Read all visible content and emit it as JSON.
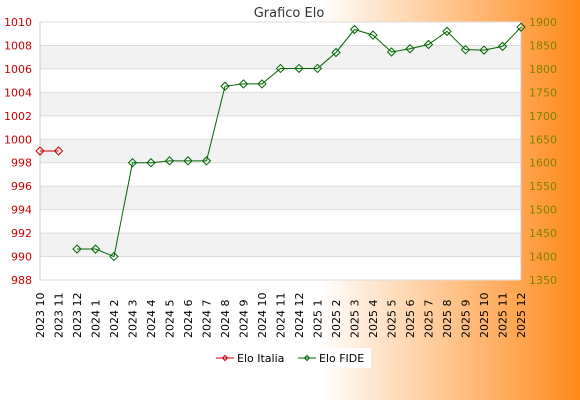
{
  "chart_data": {
    "type": "line",
    "title": "Grafico Elo",
    "categories": [
      "2023 10",
      "2023 11",
      "2023 12",
      "2024 1",
      "2024 2",
      "2024 3",
      "2024 4",
      "2024 5",
      "2024 6",
      "2024 7",
      "2024 8",
      "2024 9",
      "2024 10",
      "2024 11",
      "2024 12",
      "2025 1",
      "2025 2",
      "2025 3",
      "2025 4",
      "2025 5",
      "2025 6",
      "2025 7",
      "2025 8",
      "2025 9",
      "2025 10",
      "2025 11",
      "2025 12"
    ],
    "left_axis": {
      "min": 988,
      "max": 1010,
      "ticks": [
        988,
        990,
        992,
        994,
        996,
        998,
        1000,
        1002,
        1004,
        1006,
        1008,
        1010
      ]
    },
    "right_axis": {
      "min": 1350,
      "max": 1900,
      "ticks": [
        1350,
        1400,
        1450,
        1500,
        1550,
        1600,
        1650,
        1700,
        1750,
        1800,
        1850,
        1900
      ]
    },
    "grid": true,
    "legend_position": "bottom",
    "series": [
      {
        "name": "Elo Italia",
        "axis": "left",
        "color": "#cc0000",
        "values": [
          999,
          999,
          null,
          null,
          null,
          null,
          null,
          null,
          null,
          null,
          null,
          null,
          null,
          null,
          null,
          null,
          null,
          null,
          null,
          null,
          null,
          null,
          null,
          null,
          null,
          null,
          null
        ]
      },
      {
        "name": "Elo FIDE",
        "axis": "right",
        "color": "#006600",
        "values": [
          null,
          null,
          1416,
          1416,
          1400,
          1600,
          1600,
          1604,
          1604,
          1604,
          1763,
          1768,
          1768,
          1801,
          1801,
          1801,
          1835,
          1884,
          1872,
          1836,
          1843,
          1852,
          1880,
          1841,
          1840,
          1848,
          1889
        ]
      }
    ]
  }
}
